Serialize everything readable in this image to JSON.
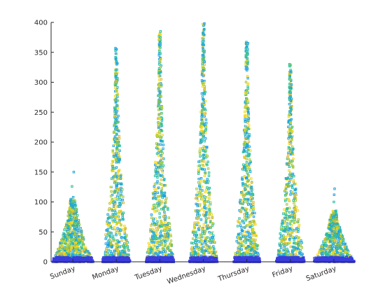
{
  "chart_data": {
    "type": "scatter",
    "title": "",
    "xlabel": "",
    "ylabel": "",
    "categories": [
      "Sunday",
      "Monday",
      "Tuesday",
      "Wednesday",
      "Thursday",
      "Friday",
      "Saturday"
    ],
    "ylim": [
      0,
      400
    ],
    "yticks": [
      0,
      50,
      100,
      150,
      200,
      250,
      300,
      350,
      400
    ],
    "grid": false,
    "legend": "none",
    "colors": [
      "#3b3ddb",
      "#1fa3e0",
      "#27c1a0",
      "#a3c83a",
      "#f4d819",
      "#e0b83a"
    ],
    "swarm": [
      {
        "category": "Sunday",
        "max": 150,
        "spread_at_base": 0.45,
        "outliers": [
          150,
          126,
          108,
          101
        ]
      },
      {
        "category": "Monday",
        "max": 357,
        "spread_at_base": 0.3,
        "outliers": [
          357,
          355,
          348,
          340,
          330,
          320
        ]
      },
      {
        "category": "Tuesday",
        "max": 385,
        "spread_at_base": 0.3,
        "outliers": [
          385,
          362,
          358,
          352,
          345,
          330
        ]
      },
      {
        "category": "Wednesday",
        "max": 398,
        "spread_at_base": 0.3,
        "outliers": [
          398,
          380,
          357,
          352,
          345,
          338
        ]
      },
      {
        "category": "Thursday",
        "max": 367,
        "spread_at_base": 0.28,
        "outliers": [
          367,
          348,
          340,
          332,
          320
        ]
      },
      {
        "category": "Friday",
        "max": 330,
        "spread_at_base": 0.3,
        "outliers": [
          330,
          310,
          305,
          290
        ]
      },
      {
        "category": "Saturday",
        "max": 122,
        "spread_at_base": 0.45,
        "outliers": [
          122,
          112,
          100
        ]
      }
    ]
  }
}
